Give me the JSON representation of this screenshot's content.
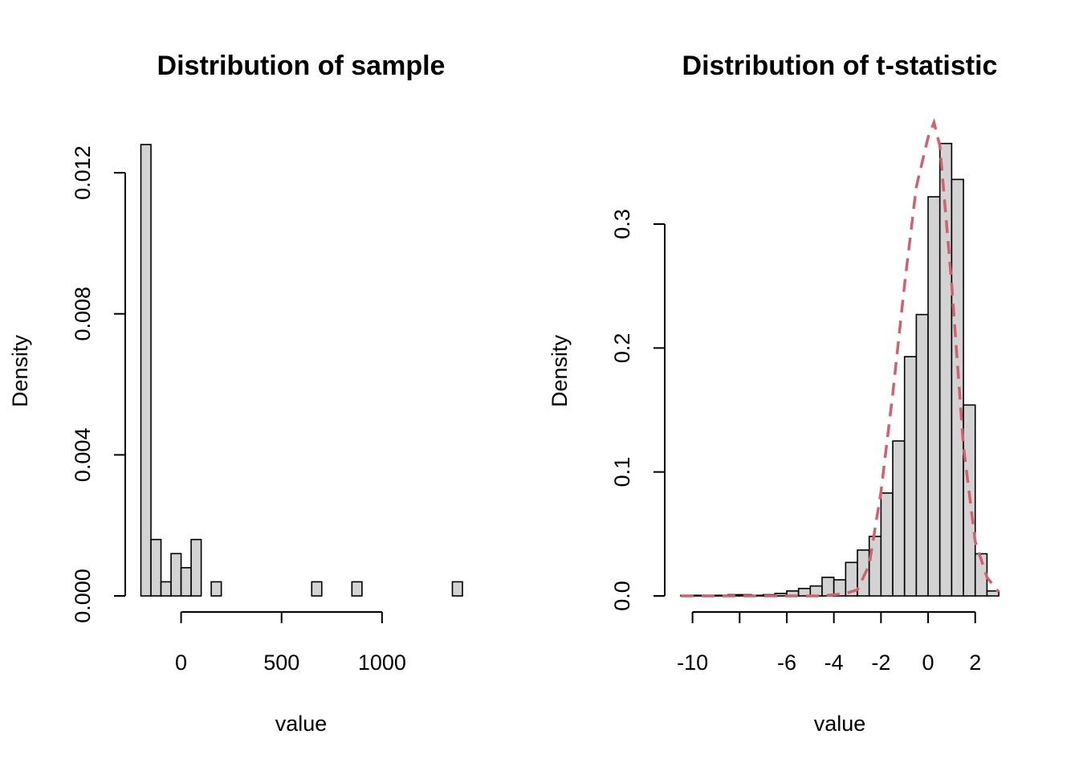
{
  "chart_data": [
    {
      "type": "bar",
      "title": "Distribution of sample",
      "xlabel": "value",
      "ylabel": "Density",
      "xlim": [
        -210,
        1400
      ],
      "ylim": [
        0,
        0.0128
      ],
      "x_ticks": [
        0,
        500,
        1000
      ],
      "y_ticks": [
        0,
        0.004,
        0.008,
        0.012
      ],
      "x_tick_labels": [
        "0",
        "500",
        "1000"
      ],
      "y_tick_labels": [
        "0.000",
        "0.004",
        "0.008",
        "0.012"
      ],
      "grid": false,
      "bin_width": 50,
      "bin_starts": [
        -200,
        -150,
        -100,
        -50,
        0,
        50,
        100,
        150,
        200,
        250,
        300,
        350,
        400,
        450,
        500,
        550,
        600,
        650,
        700,
        750,
        800,
        850,
        900,
        950,
        1000,
        1050,
        1100,
        1150,
        1200,
        1250,
        1300,
        1350
      ],
      "values": [
        0.0128,
        0.0016,
        0.0004,
        0.0012,
        0.0008,
        0.0016,
        0,
        0.0004,
        0,
        0,
        0,
        0,
        0,
        0,
        0,
        0,
        0,
        0.0004,
        0,
        0,
        0,
        0.0004,
        0,
        0,
        0,
        0,
        0,
        0,
        0,
        0,
        0,
        0.0004
      ]
    },
    {
      "type": "bar",
      "title": "Distribution of t-statistic",
      "xlabel": "value",
      "ylabel": "Density",
      "xlim": [
        -10.6,
        3.1
      ],
      "ylim": [
        0,
        0.3745
      ],
      "x_ticks": [
        -10,
        -8,
        -6,
        -4,
        -2,
        0,
        2
      ],
      "y_ticks": [
        0,
        0.1,
        0.2,
        0.3
      ],
      "x_tick_labels": [
        "-10",
        "",
        "-6",
        "-4",
        "-2",
        "0",
        "2"
      ],
      "y_tick_labels": [
        "0.0",
        "0.1",
        "0.2",
        "0.3"
      ],
      "grid": false,
      "bin_width": 0.5,
      "bin_starts": [
        -10.5,
        -10,
        -9.5,
        -9,
        -8.5,
        -8,
        -7.5,
        -7,
        -6.5,
        -6,
        -5.5,
        -5,
        -4.5,
        -4,
        -3.5,
        -3,
        -2.5,
        -2,
        -1.5,
        -1,
        -0.5,
        0,
        0.5,
        1,
        1.5,
        2,
        2.5
      ],
      "values": [
        0.0005,
        0.0005,
        0.0005,
        0.0005,
        0.001,
        0.001,
        0.0005,
        0.001,
        0.002,
        0.004,
        0.006,
        0.008,
        0.015,
        0.013,
        0.027,
        0.037,
        0.048,
        0.083,
        0.125,
        0.193,
        0.227,
        0.322,
        0.365,
        0.336,
        0.154,
        0.034,
        0.004
      ],
      "density_curve": {
        "style": "dashed",
        "color": "#d16070",
        "x": [
          -10.5,
          -9,
          -8,
          -7,
          -6,
          -5,
          -4.5,
          -4,
          -3.5,
          -3,
          -2.5,
          -2,
          -1.5,
          -1,
          -0.5,
          0,
          0.25,
          0.5,
          1,
          1.5,
          2,
          2.5,
          3
        ],
        "y": [
          0,
          0,
          0,
          0,
          0,
          0,
          0,
          0.001,
          0.002,
          0.005,
          0.025,
          0.084,
          0.163,
          0.251,
          0.33,
          0.37,
          0.382,
          0.363,
          0.252,
          0.121,
          0.044,
          0.015,
          0.003
        ]
      }
    }
  ]
}
